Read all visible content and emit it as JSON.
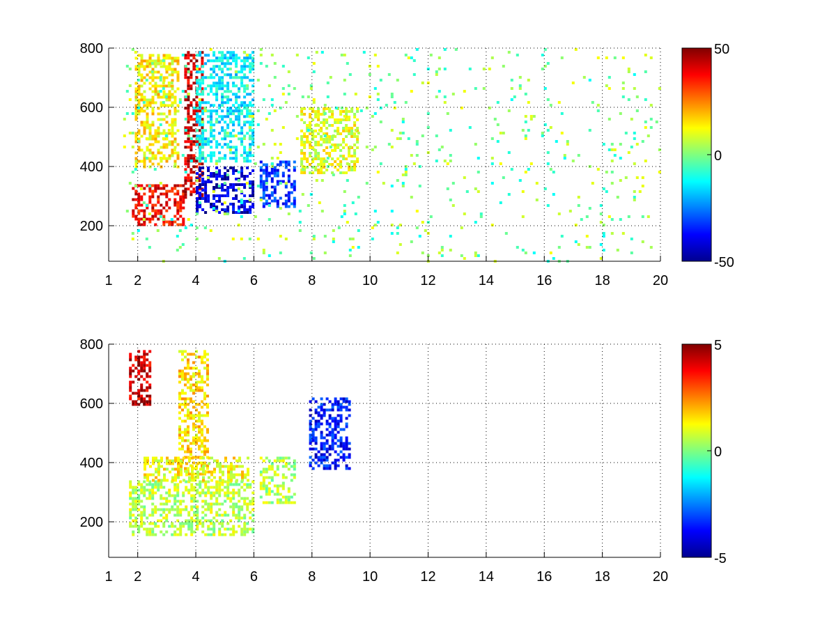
{
  "chart_data": [
    {
      "type": "heatmap",
      "title": "",
      "xlabel": "",
      "ylabel": "",
      "xlim": [
        1,
        20
      ],
      "ylim": [
        80,
        800
      ],
      "xticks": [
        1,
        2,
        4,
        6,
        8,
        10,
        12,
        14,
        16,
        18,
        20
      ],
      "yticks": [
        200,
        400,
        600,
        800
      ],
      "grid": true,
      "colormap": "jet",
      "colorbar": {
        "min": -50,
        "max": 50,
        "ticks": [
          50,
          0,
          -50
        ]
      },
      "features": [
        {
          "x": [
            1.8,
            3.6
          ],
          "y": [
            200,
            340
          ],
          "value": 38
        },
        {
          "x": [
            1.9,
            3.4
          ],
          "y": [
            400,
            780
          ],
          "value": 14
        },
        {
          "x": [
            3.6,
            4.2
          ],
          "y": [
            300,
            790
          ],
          "value": 42
        },
        {
          "x": [
            4.0,
            6.0
          ],
          "y": [
            240,
            400
          ],
          "value": -42
        },
        {
          "x": [
            4.0,
            6.0
          ],
          "y": [
            420,
            790
          ],
          "value": -14
        },
        {
          "x": [
            6.2,
            7.4
          ],
          "y": [
            260,
            420
          ],
          "value": -32
        },
        {
          "x": [
            7.6,
            9.6
          ],
          "y": [
            380,
            600
          ],
          "value": 10
        },
        {
          "x": [
            1.5,
            20
          ],
          "y": [
            80,
            800
          ],
          "value": 0,
          "sparse": true
        }
      ]
    },
    {
      "type": "heatmap",
      "title": "",
      "xlabel": "",
      "ylabel": "",
      "xlim": [
        1,
        20
      ],
      "ylim": [
        80,
        800
      ],
      "xticks": [
        1,
        2,
        4,
        6,
        8,
        10,
        12,
        14,
        16,
        18,
        20
      ],
      "yticks": [
        200,
        400,
        600,
        800
      ],
      "grid": true,
      "colormap": "jet",
      "colorbar": {
        "min": -5,
        "max": 5,
        "ticks": [
          5,
          0,
          -5
        ]
      },
      "features": [
        {
          "x": [
            1.7,
            6.0
          ],
          "y": [
            160,
            340
          ],
          "value": 0.6
        },
        {
          "x": [
            3.4,
            4.4
          ],
          "y": [
            360,
            780
          ],
          "value": 1.6
        },
        {
          "x": [
            2.2,
            5.8
          ],
          "y": [
            340,
            420
          ],
          "value": 1.2
        },
        {
          "x": [
            6.2,
            7.4
          ],
          "y": [
            260,
            420
          ],
          "value": 0.5
        },
        {
          "x": [
            7.9,
            9.3
          ],
          "y": [
            380,
            620
          ],
          "value": -3.6
        },
        {
          "x": [
            1.7,
            2.4
          ],
          "y": [
            600,
            780
          ],
          "value": 4.2
        }
      ]
    }
  ]
}
